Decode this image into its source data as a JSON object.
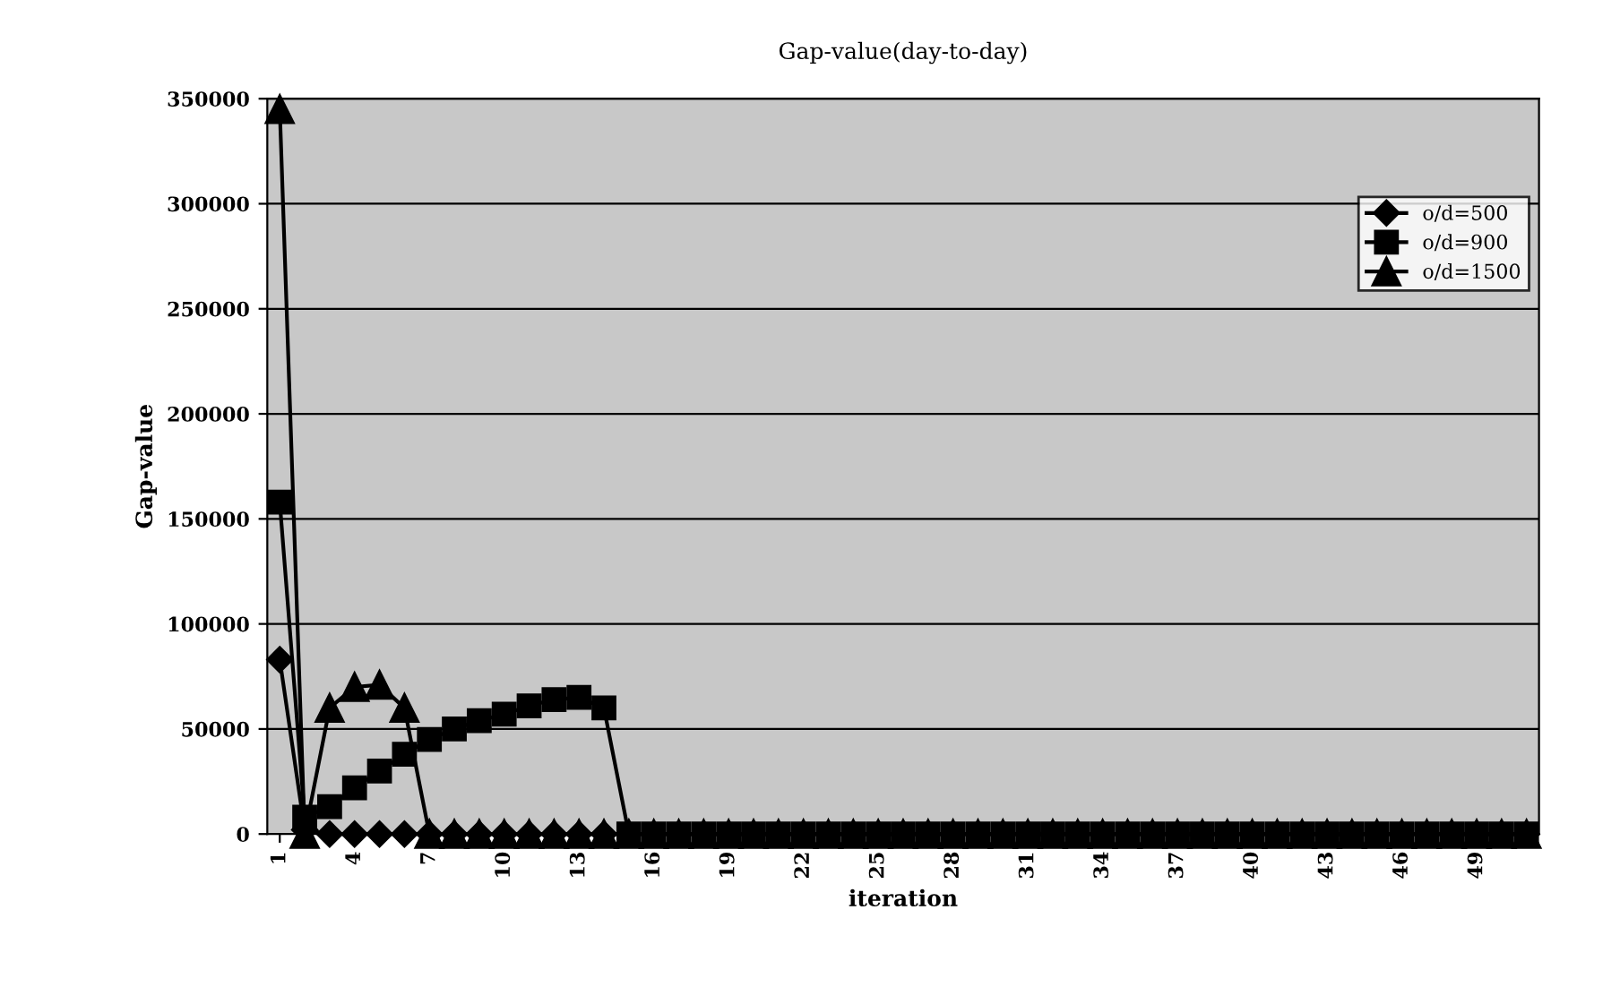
{
  "chart_data": {
    "type": "line",
    "title": "Gap-value(day-to-day)",
    "xlabel": "iteration",
    "ylabel": "Gap-value",
    "categories": [
      "1",
      null,
      null,
      "4",
      null,
      null,
      "7",
      null,
      null,
      "10",
      null,
      null,
      "13",
      null,
      null,
      "16",
      null,
      null,
      "19",
      null,
      null,
      "22",
      null,
      null,
      "25",
      null,
      null,
      "28",
      null,
      null,
      "31",
      null,
      null,
      "34",
      null,
      null,
      "37",
      null,
      null,
      "40",
      null,
      null,
      "43",
      null,
      null,
      "46",
      null,
      null,
      "49",
      null,
      null
    ],
    "series": [
      {
        "name": "o/d=500",
        "color": "#000000",
        "marker": "diamond",
        "values": [
          83000,
          2000,
          0,
          0,
          0,
          0,
          0,
          0,
          0,
          0,
          0,
          0,
          0,
          0,
          0,
          0,
          0,
          0,
          0,
          0,
          0,
          0,
          0,
          0,
          0,
          0,
          0,
          0,
          0,
          0,
          0,
          0,
          0,
          0,
          0,
          0,
          0,
          0,
          0,
          0,
          0,
          0,
          0,
          0,
          0,
          0,
          0,
          0,
          0,
          0,
          0
        ]
      },
      {
        "name": "o/d=900",
        "color": "#000000",
        "marker": "square",
        "values": [
          158000,
          8000,
          13000,
          22000,
          30000,
          38000,
          45000,
          50000,
          54000,
          57000,
          61000,
          64000,
          65000,
          60000,
          0,
          0,
          0,
          0,
          0,
          0,
          0,
          0,
          0,
          0,
          0,
          0,
          0,
          0,
          0,
          0,
          0,
          0,
          0,
          0,
          0,
          0,
          0,
          0,
          0,
          0,
          0,
          0,
          0,
          0,
          0,
          0,
          0,
          0,
          0,
          0,
          0
        ]
      },
      {
        "name": "o/d=1500",
        "color": "#000000",
        "marker": "triangle",
        "values": [
          345000,
          0,
          60000,
          70000,
          71000,
          60000,
          0,
          0,
          0,
          0,
          0,
          0,
          0,
          0,
          0,
          0,
          0,
          0,
          0,
          0,
          0,
          0,
          0,
          0,
          0,
          0,
          0,
          0,
          0,
          0,
          0,
          0,
          0,
          0,
          0,
          0,
          0,
          0,
          0,
          0,
          0,
          0,
          0,
          0,
          0,
          0,
          0,
          0,
          0,
          0,
          0
        ]
      }
    ],
    "ylim": [
      0,
      350000
    ],
    "yticks": [
      0,
      50000,
      100000,
      150000,
      200000,
      250000,
      300000,
      350000
    ],
    "grid": "y",
    "legend": "top right",
    "line_style": "solid"
  }
}
